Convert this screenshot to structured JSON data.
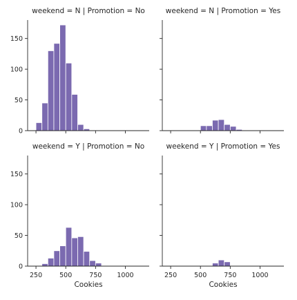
{
  "chart_data": {
    "type": "bar",
    "bar_color": "#7b6ab0",
    "xlabel": "Cookies",
    "ylabel": "",
    "xlim": [
      180,
      1200
    ],
    "ylim": [
      0,
      180
    ],
    "xticks": [
      250,
      500,
      750,
      1000
    ],
    "yticks": [
      0,
      50,
      100,
      150
    ],
    "bin_edges": [
      250,
      300,
      350,
      400,
      450,
      500,
      550,
      600,
      650,
      700,
      750,
      800,
      850,
      900,
      950,
      1000,
      1050,
      1100
    ],
    "grid": false,
    "legend": "none",
    "panels": [
      {
        "title": "weekend = N | Promotion = No",
        "values": [
          13,
          45,
          130,
          142,
          172,
          110,
          59,
          10,
          3,
          0,
          0,
          1,
          0,
          0,
          0,
          0,
          0
        ]
      },
      {
        "title": "weekend = N | Promotion = Yes",
        "values": [
          0,
          0,
          0,
          0,
          0,
          8,
          8,
          17,
          18,
          10,
          7,
          2,
          0,
          1,
          0,
          0,
          0
        ]
      },
      {
        "title": "weekend = Y | Promotion = No",
        "values": [
          0,
          4,
          13,
          25,
          33,
          63,
          46,
          48,
          24,
          9,
          5,
          0,
          0,
          0,
          0,
          0,
          0
        ]
      },
      {
        "title": "weekend = Y | Promotion = Yes",
        "values": [
          0,
          0,
          0,
          0,
          0,
          0,
          0,
          5,
          10,
          7,
          0,
          0,
          0,
          0,
          0,
          0,
          0
        ]
      }
    ]
  }
}
